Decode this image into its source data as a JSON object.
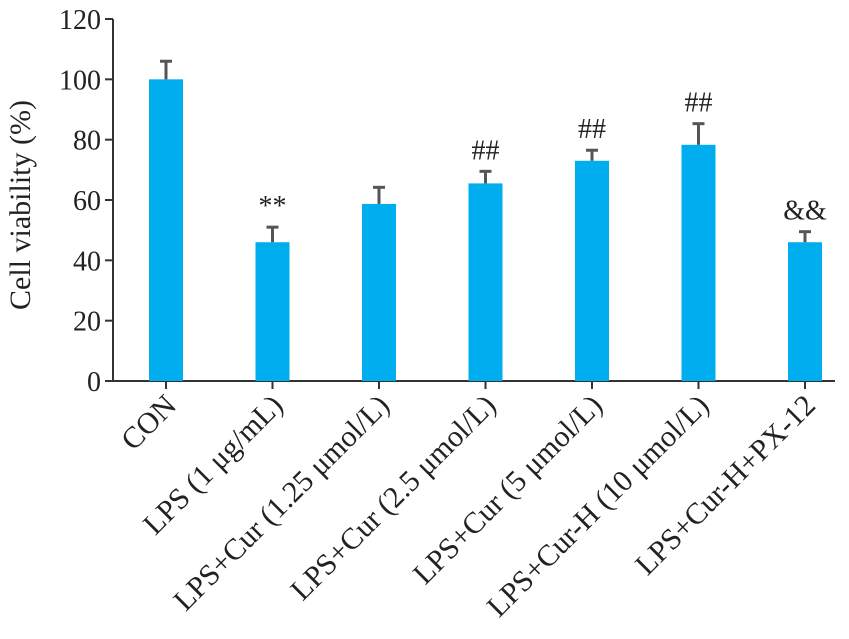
{
  "chart_data": {
    "type": "bar",
    "title": "",
    "xlabel": "",
    "ylabel": "Cell viability (%)",
    "ylim": [
      0,
      120
    ],
    "yticks": [
      0,
      20,
      40,
      60,
      80,
      100,
      120
    ],
    "grid": false,
    "categories": [
      "CON",
      "LPS (1 μg/mL)",
      "LPS+Cur (1.25 μmol/L)",
      "LPS+Cur (2.5 μmol/L)",
      "LPS+Cur (5 μmol/L)",
      "LPS+Cur-H (10 μmol/L)",
      "LPS+Cur-H+PX-12"
    ],
    "values": [
      100,
      46,
      58.7,
      65.5,
      73,
      78.3,
      46
    ],
    "errors": [
      6,
      5,
      5.5,
      4,
      3.5,
      7,
      3.5
    ],
    "annotations": [
      "",
      "**",
      "",
      "##",
      "##",
      "##",
      "&&"
    ],
    "bar_color": "#00adef",
    "error_color": "#555555"
  }
}
